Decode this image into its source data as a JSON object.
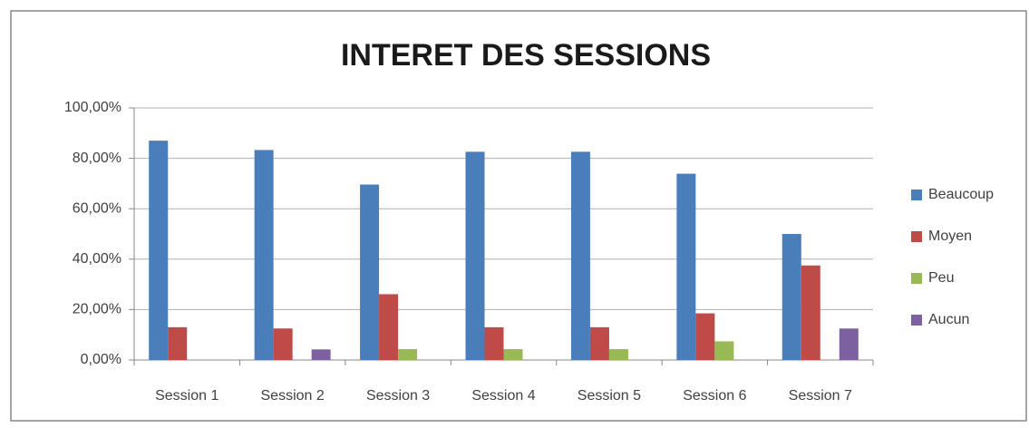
{
  "chart_data": {
    "type": "bar",
    "title": "INTERET DES SESSIONS",
    "categories": [
      "Session 1",
      "Session 2",
      "Session 3",
      "Session 4",
      "Session 5",
      "Session 6",
      "Session 7"
    ],
    "series": [
      {
        "name": "Beaucoup",
        "color": "#4a7ebb",
        "values": [
          87,
          83.3,
          69.6,
          82.6,
          82.6,
          73.9,
          50
        ]
      },
      {
        "name": "Moyen",
        "color": "#be4b48",
        "values": [
          13,
          12.5,
          26.1,
          13,
          13,
          18.5,
          37.5
        ]
      },
      {
        "name": "Peu",
        "color": "#98b954",
        "values": [
          0,
          0,
          4.3,
          4.3,
          4.3,
          7.4,
          0
        ]
      },
      {
        "name": "Aucun",
        "color": "#7d60a0",
        "values": [
          0,
          4.2,
          0,
          0,
          0,
          0,
          12.5
        ]
      }
    ],
    "ylim": [
      0,
      100
    ],
    "yticks": [
      {
        "value": 0,
        "label": "0,00%"
      },
      {
        "value": 20,
        "label": "20,00%"
      },
      {
        "value": 40,
        "label": "40,00%"
      },
      {
        "value": 60,
        "label": "60,00%"
      },
      {
        "value": 80,
        "label": "80,00%"
      },
      {
        "value": 100,
        "label": "100,00%"
      }
    ],
    "grid": true,
    "legend": "right"
  }
}
